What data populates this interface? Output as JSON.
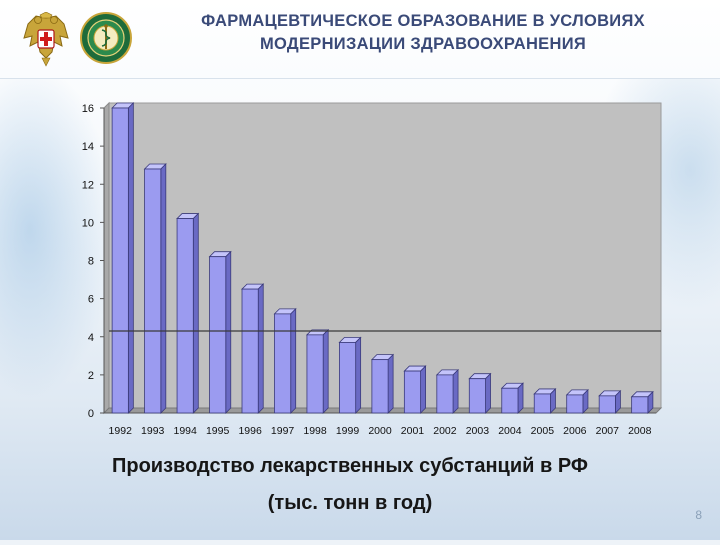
{
  "header": {
    "title_line1": "ФАРМАЦЕВТИЧЕСКОЕ ОБРАЗОВАНИЕ В УСЛОВИЯХ",
    "title_line2": "МОДЕРНИЗАЦИИ ЗДРАВООХРАНЕНИЯ",
    "emblem_left_icon": "coat-of-arms-eagle-icon",
    "emblem_right_icon": "medical-seal-icon"
  },
  "chart_data": {
    "type": "bar",
    "categories": [
      "1992",
      "1993",
      "1994",
      "1995",
      "1996",
      "1997",
      "1998",
      "1999",
      "2000",
      "2001",
      "2002",
      "2003",
      "2004",
      "2005",
      "2006",
      "2007",
      "2008"
    ],
    "values": [
      16,
      12.8,
      10.2,
      8.2,
      6.5,
      5.2,
      4.1,
      3.7,
      2.8,
      2.2,
      2.0,
      1.8,
      1.3,
      1.0,
      0.95,
      0.9,
      0.85
    ],
    "yticks": [
      0,
      2,
      4,
      6,
      8,
      10,
      12,
      14,
      16
    ],
    "ylim": [
      0,
      16
    ],
    "reference_line": 4.3,
    "bar_color": "#9b9bf0",
    "plot_background": "#c0c0c0",
    "grid": false,
    "legend": "none"
  },
  "caption": {
    "line1": "Производство лекарственных субстанций в РФ",
    "line2": "(тыс. тонн в год)"
  },
  "page_number": "8"
}
